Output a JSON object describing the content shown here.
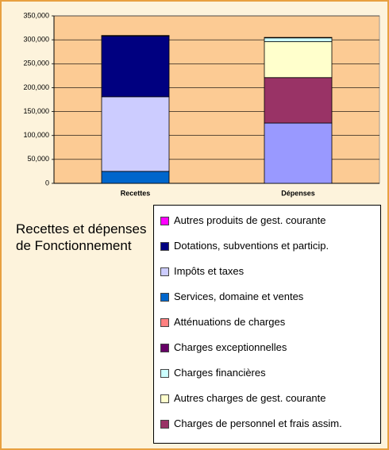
{
  "chart_data": {
    "type": "stacked_bar",
    "title": "Recettes et dépenses de Fonctionnement",
    "categories": [
      "Recettes",
      "Dépenses"
    ],
    "ylim": [
      0,
      350000
    ],
    "yticks": [
      0,
      {
        "value": 50000,
        "label": "50,000"
      },
      {
        "value": 100000,
        "label": "100,000"
      },
      {
        "value": 150000,
        "label": "150,000"
      },
      {
        "value": 200000,
        "label": "200,000"
      },
      {
        "value": 250000,
        "label": "250,000"
      },
      {
        "value": 300000,
        "label": "300,000"
      },
      {
        "value": 350000,
        "label": "350,000"
      }
    ],
    "grid": true,
    "series": [
      {
        "name": null,
        "color": "#9999ff",
        "values": [
          0,
          126000
        ]
      },
      {
        "name": "Charges de personnel et frais assim.",
        "color": "#993366",
        "values": [
          0,
          95000
        ]
      },
      {
        "name": "Autres charges de gest. courante",
        "color": "#ffffcc",
        "values": [
          0,
          75000
        ]
      },
      {
        "name": "Charges financières",
        "color": "#ccffff",
        "values": [
          0,
          8000
        ]
      },
      {
        "name": "Charges exceptionnelles",
        "color": "#660066",
        "values": [
          0,
          1000
        ]
      },
      {
        "name": "Atténuations de charges",
        "color": "#ff8080",
        "values": [
          0,
          0
        ]
      },
      {
        "name": "Services, domaine et ventes",
        "color": "#0066cc",
        "values": [
          25000,
          0
        ]
      },
      {
        "name": "Impôts et taxes",
        "color": "#ccccff",
        "values": [
          156000,
          0
        ]
      },
      {
        "name": "Dotations, subventions et particip.",
        "color": "#000080",
        "values": [
          127000,
          0
        ]
      },
      {
        "name": "Autres produits de gest. courante",
        "color": "#ff00ff",
        "values": [
          1000,
          0
        ]
      }
    ]
  }
}
